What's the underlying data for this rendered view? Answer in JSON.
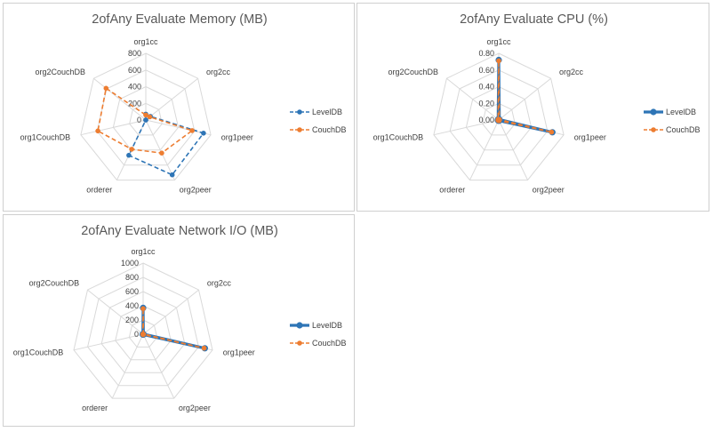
{
  "chart_data": [
    {
      "type": "radar",
      "title": "2ofAny Evaluate Memory (MB)",
      "categories": [
        "org1cc",
        "org2cc",
        "org1peer",
        "org2peer",
        "orderer",
        "org1CouchDB",
        "org2CouchDB"
      ],
      "rlim": [
        0,
        800
      ],
      "ticks": [
        "0",
        "200",
        "400",
        "600",
        "800"
      ],
      "series": [
        {
          "name": "LevelDB",
          "color": "#2e75b6",
          "dash": true,
          "thick": false,
          "values": [
            70,
            70,
            710,
            730,
            470,
            0,
            0
          ]
        },
        {
          "name": "CouchDB",
          "color": "#ed7d31",
          "dash": true,
          "thick": false,
          "values": [
            60,
            60,
            570,
            440,
            390,
            590,
            610
          ]
        }
      ],
      "legend": "right"
    },
    {
      "type": "radar",
      "title": "2ofAny Evaluate CPU (%)",
      "categories": [
        "org1cc",
        "org2cc",
        "org1peer",
        "org2peer",
        "orderer",
        "org1CouchDB",
        "org2CouchDB"
      ],
      "rlim": [
        0,
        0.8
      ],
      "ticks": [
        "0.00",
        "0.20",
        "0.40",
        "0.60",
        "0.80"
      ],
      "series": [
        {
          "name": "LevelDB",
          "color": "#2e75b6",
          "dash": false,
          "thick": true,
          "values": [
            0.72,
            0.01,
            0.66,
            0.01,
            0.01,
            0.01,
            0.01
          ]
        },
        {
          "name": "CouchDB",
          "color": "#ed7d31",
          "dash": true,
          "thick": false,
          "values": [
            0.71,
            0.01,
            0.65,
            0.01,
            0.01,
            0.01,
            0.01
          ]
        }
      ],
      "legend": "right"
    },
    {
      "type": "radar",
      "title": "2ofAny Evaluate Network I/O (MB)",
      "categories": [
        "org1cc",
        "org2cc",
        "org1peer",
        "org2peer",
        "orderer",
        "org1CouchDB",
        "org2CouchDB"
      ],
      "rlim": [
        0,
        1000
      ],
      "ticks": [
        "0",
        "200",
        "400",
        "600",
        "800",
        "1000"
      ],
      "series": [
        {
          "name": "LevelDB",
          "color": "#2e75b6",
          "dash": false,
          "thick": true,
          "values": [
            370,
            5,
            890,
            5,
            5,
            5,
            5
          ]
        },
        {
          "name": "CouchDB",
          "color": "#ed7d31",
          "dash": true,
          "thick": false,
          "values": [
            360,
            5,
            880,
            5,
            5,
            5,
            5
          ]
        }
      ],
      "legend": "right"
    }
  ]
}
